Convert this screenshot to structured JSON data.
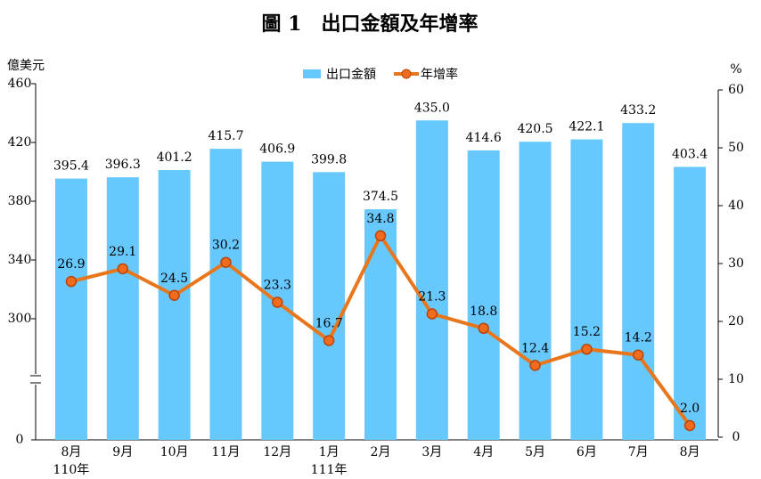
{
  "chart_data": {
    "type": "bar-line",
    "title": "圖 1　出口金額及年增率",
    "y_label": "億美元",
    "y2_label": "%",
    "categories": [
      "8月",
      "9月",
      "10月",
      "11月",
      "12月",
      "1月",
      "2月",
      "3月",
      "4月",
      "5月",
      "6月",
      "7月",
      "8月"
    ],
    "years": [
      "110年",
      null,
      null,
      null,
      null,
      "111年",
      null,
      null,
      null,
      null,
      null,
      null,
      null
    ],
    "series": [
      {
        "name": "出口金額",
        "type": "bar",
        "color": "#66c8fc",
        "values": [
          395.4,
          396.3,
          401.2,
          415.7,
          406.9,
          399.8,
          374.5,
          435.0,
          414.6,
          420.5,
          422.1,
          433.2,
          403.4
        ],
        "value_labels": [
          "395.4",
          "396.3",
          "401.2",
          "415.7",
          "406.9",
          "399.8",
          "374.5",
          "435.0",
          "414.6",
          "420.5",
          "422.1",
          "433.2",
          "403.4"
        ]
      },
      {
        "name": "年增率",
        "type": "line",
        "axis": "y2",
        "color": "#e8761c",
        "values": [
          26.9,
          29.1,
          24.5,
          30.2,
          23.3,
          16.7,
          34.8,
          21.3,
          18.8,
          12.4,
          15.2,
          14.2,
          2.0
        ],
        "value_labels": [
          "26.9",
          "29.1",
          "24.5",
          "30.2",
          "23.3",
          "16.7",
          "34.8",
          "21.3",
          "18.8",
          "12.4",
          "15.2",
          "14.2",
          "2.0"
        ]
      }
    ],
    "ylim": [
      0,
      460
    ],
    "yticks": [
      0,
      300,
      340,
      380,
      420,
      460
    ],
    "y_axis_break": true,
    "y2lim": [
      0,
      60
    ],
    "y2ticks": [
      0,
      10,
      20,
      30,
      40,
      50,
      60
    ],
    "legend": "top"
  }
}
